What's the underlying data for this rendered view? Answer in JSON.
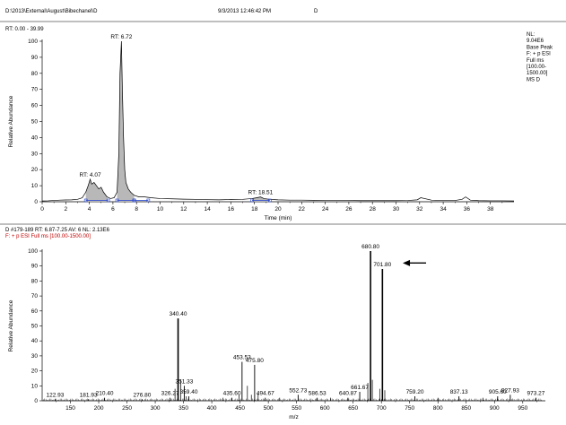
{
  "header": {
    "path": "D:\\2013\\External\\August\\Bibechanel\\D",
    "datetime": "9/3/2013 12:46:42 PM",
    "sample": "D"
  },
  "chart_data": [
    {
      "type": "line",
      "name": "chromatogram",
      "title": "RT: 0.00 - 39.99",
      "xlabel": "Time (min)",
      "ylabel": "Relative Abundance",
      "xlim": [
        0,
        40
      ],
      "ylim": [
        0,
        100
      ],
      "xticks": [
        "0",
        "2",
        "4",
        "6",
        "8",
        "10",
        "12",
        "14",
        "16",
        "18",
        "20",
        "22",
        "24",
        "26",
        "28",
        "30",
        "32",
        "34",
        "36",
        "38"
      ],
      "yticks": [
        "0",
        "10",
        "20",
        "30",
        "40",
        "50",
        "60",
        "70",
        "80",
        "90",
        "100"
      ],
      "info": [
        "NL:",
        "9.04E6",
        "Base Peak",
        "F: + p ESI",
        "Full ms",
        "[100.00-",
        "1500.00]",
        "MS D"
      ],
      "annotations": [
        {
          "text": "RT: 6.72",
          "x": 6.72,
          "y": 100
        },
        {
          "text": "RT: 4.07",
          "x": 4.07,
          "y": 14
        },
        {
          "text": "RT: 18.51",
          "x": 18.51,
          "y": 3
        }
      ],
      "series": [
        {
          "x": [
            0,
            0.5,
            1,
            1.5,
            2,
            2.5,
            3,
            3.4,
            3.7,
            3.9,
            4.07,
            4.2,
            4.4,
            4.6,
            4.8,
            5.0,
            5.2,
            5.5,
            5.8,
            6.1,
            6.35,
            6.5,
            6.6,
            6.72,
            6.8,
            6.9,
            7.0,
            7.1,
            7.3,
            7.5,
            7.8,
            8.2,
            8.7,
            9.2,
            10,
            11,
            12,
            13,
            14,
            15,
            16,
            17,
            17.8,
            18.2,
            18.51,
            18.8,
            19.3,
            20,
            21,
            22,
            23,
            24,
            25,
            26,
            27,
            28,
            29,
            30,
            31,
            31.8,
            32.1,
            33,
            34,
            35,
            35.6,
            35.9,
            36.3,
            37,
            38,
            39,
            40
          ],
          "y": [
            0.5,
            0.6,
            0.8,
            1.0,
            1.1,
            1.2,
            1.5,
            2.5,
            6,
            10,
            14,
            11,
            12,
            10,
            8,
            9,
            6,
            3,
            2,
            2.5,
            6,
            30,
            80,
            100,
            70,
            40,
            20,
            12,
            8,
            6,
            4,
            3,
            3,
            2.5,
            2,
            1.8,
            1.6,
            1.5,
            1.3,
            1.2,
            1.4,
            1.5,
            2,
            2.5,
            3,
            2,
            1.5,
            1.2,
            1,
            1,
            0.9,
            0.8,
            0.8,
            0.8,
            0.7,
            0.7,
            0.7,
            0.7,
            0.8,
            1.2,
            2.5,
            1,
            0.8,
            0.8,
            1.5,
            3,
            1,
            0.7,
            0.6,
            0.6,
            0.5
          ]
        }
      ]
    },
    {
      "type": "bar",
      "name": "mass-spectrum",
      "scan_info": "D #179-189  RT: 6.87-7.25  AV: 6  NL: 2.13E6",
      "filter": "F: + p ESI Full ms [100.00-1500.00]",
      "xlabel": "m/z",
      "ylabel": "Relative Abundance",
      "xlim": [
        100,
        990
      ],
      "ylim": [
        0,
        100
      ],
      "xticks": [
        "150",
        "200",
        "250",
        "300",
        "350",
        "400",
        "450",
        "500",
        "550",
        "600",
        "650",
        "700",
        "750",
        "800",
        "850",
        "900",
        "950"
      ],
      "yticks": [
        "0",
        "10",
        "20",
        "30",
        "40",
        "50",
        "60",
        "70",
        "80",
        "90",
        "100"
      ],
      "peaks_labeled": [
        {
          "mz": 122.93,
          "label": "122.93",
          "y": 1
        },
        {
          "mz": 181.93,
          "label": "181.93",
          "y": 1
        },
        {
          "mz": 210.4,
          "label": "210.40",
          "y": 2
        },
        {
          "mz": 276.8,
          "label": "276.80",
          "y": 1
        },
        {
          "mz": 326.27,
          "label": "326.27",
          "y": 2
        },
        {
          "mz": 340.4,
          "label": "340.40",
          "y": 55
        },
        {
          "mz": 351.33,
          "label": "351.33",
          "y": 10
        },
        {
          "mz": 359.4,
          "label": "359.40",
          "y": 3
        },
        {
          "mz": 435.6,
          "label": "435.60",
          "y": 2
        },
        {
          "mz": 453.53,
          "label": "453.53",
          "y": 26
        },
        {
          "mz": 475.8,
          "label": "475.80",
          "y": 24
        },
        {
          "mz": 494.67,
          "label": "494.67",
          "y": 2
        },
        {
          "mz": 552.73,
          "label": "552.73",
          "y": 4
        },
        {
          "mz": 586.53,
          "label": "586.53",
          "y": 2
        },
        {
          "mz": 640.87,
          "label": "640.87",
          "y": 2
        },
        {
          "mz": 661.67,
          "label": "661.67",
          "y": 6
        },
        {
          "mz": 680.8,
          "label": "680.80",
          "y": 100
        },
        {
          "mz": 701.8,
          "label": "701.80",
          "y": 88
        },
        {
          "mz": 759.2,
          "label": "759.20",
          "y": 3
        },
        {
          "mz": 837.13,
          "label": "837.13",
          "y": 3
        },
        {
          "mz": 905.6,
          "label": "905.60",
          "y": 3
        },
        {
          "mz": 927.93,
          "label": "927.93",
          "y": 4
        },
        {
          "mz": 973.27,
          "label": "973.27",
          "y": 2
        }
      ],
      "peaks_minor": [
        {
          "mz": 335,
          "y": 8
        },
        {
          "mz": 345,
          "y": 14
        },
        {
          "mz": 355,
          "y": 3
        },
        {
          "mz": 448,
          "y": 4
        },
        {
          "mz": 463,
          "y": 10
        },
        {
          "mz": 470,
          "y": 4
        },
        {
          "mz": 482,
          "y": 5
        },
        {
          "mz": 610,
          "y": 2
        },
        {
          "mz": 676,
          "y": 12
        },
        {
          "mz": 684,
          "y": 14
        },
        {
          "mz": 697,
          "y": 8
        },
        {
          "mz": 706,
          "y": 7
        },
        {
          "mz": 420,
          "y": 2
        },
        {
          "mz": 520,
          "y": 2
        },
        {
          "mz": 800,
          "y": 2
        },
        {
          "mz": 880,
          "y": 2
        }
      ],
      "arrow_annotation": {
        "mz": 760,
        "y": 92
      }
    }
  ]
}
